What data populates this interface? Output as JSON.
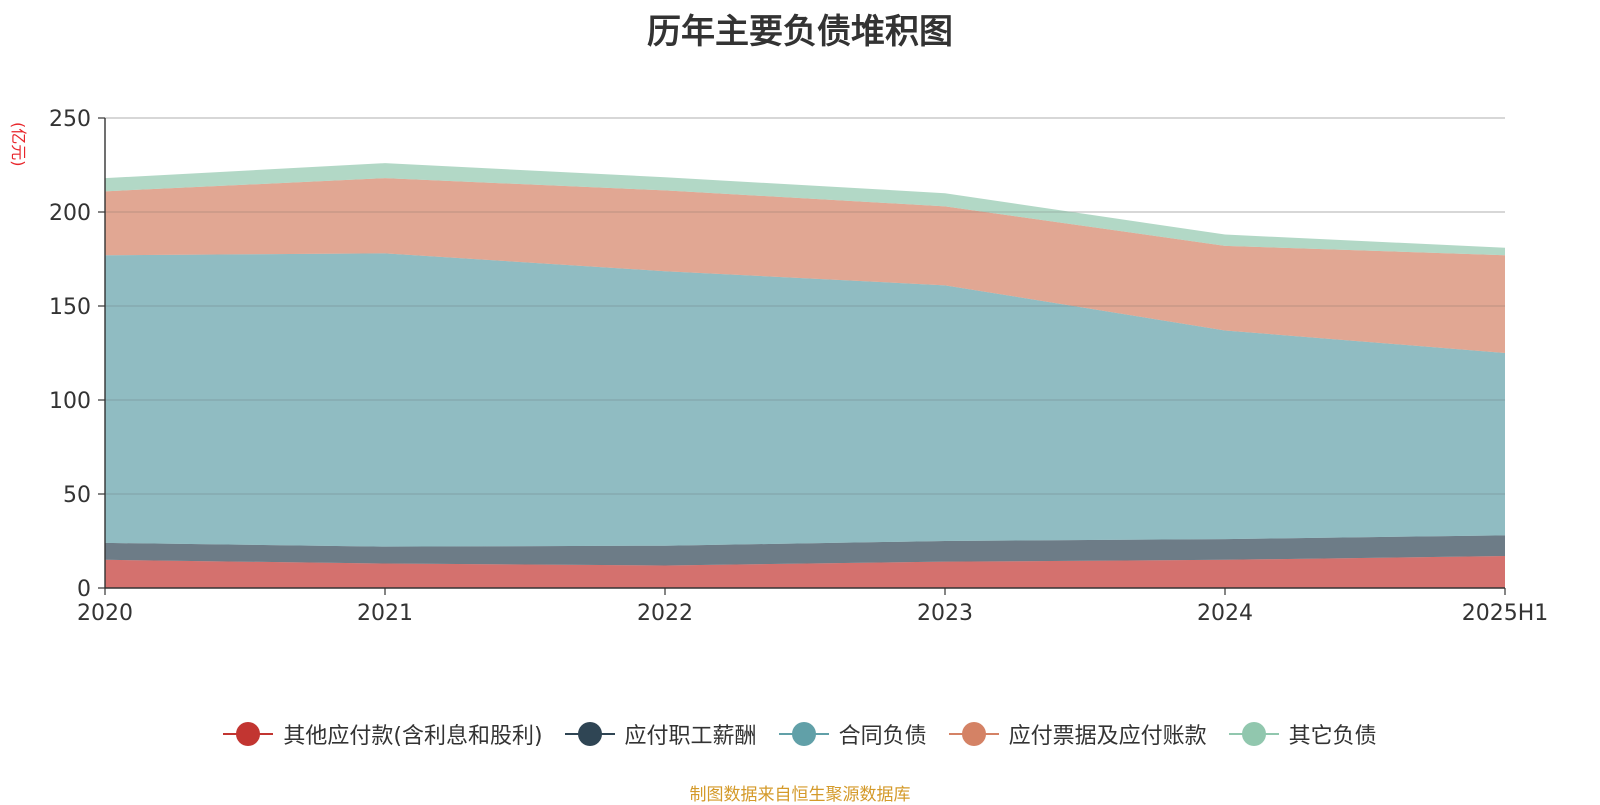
{
  "chart_data": {
    "type": "area",
    "stacked": true,
    "title": "历年主要负债堆积图",
    "unit_label": "(亿元)",
    "categories": [
      "2020",
      "2021",
      "2022",
      "2023",
      "2024",
      "2025H1"
    ],
    "ylim": [
      0,
      250
    ],
    "yticks": [
      0,
      50,
      100,
      150,
      200,
      250
    ],
    "grid": true,
    "legend_position": "bottom",
    "series": [
      {
        "name": "其他应付款(含利息和股利)",
        "color": "#c23531",
        "values": [
          15,
          13,
          12,
          14,
          15,
          17
        ]
      },
      {
        "name": "应付职工薪酬",
        "color": "#2f4554",
        "values": [
          9,
          9,
          10.5,
          11,
          11,
          11
        ]
      },
      {
        "name": "合同负债",
        "color": "#61a0a8",
        "values": [
          153,
          156,
          146,
          136,
          111,
          97
        ]
      },
      {
        "name": "应付票据及应付账款",
        "color": "#d48265",
        "values": [
          34,
          40,
          43,
          42,
          45,
          52
        ]
      },
      {
        "name": "其它负债",
        "color": "#91c7ae",
        "values": [
          7,
          8,
          7,
          7,
          6,
          4
        ]
      }
    ]
  },
  "source_note": "制图数据来自恒生聚源数据库"
}
